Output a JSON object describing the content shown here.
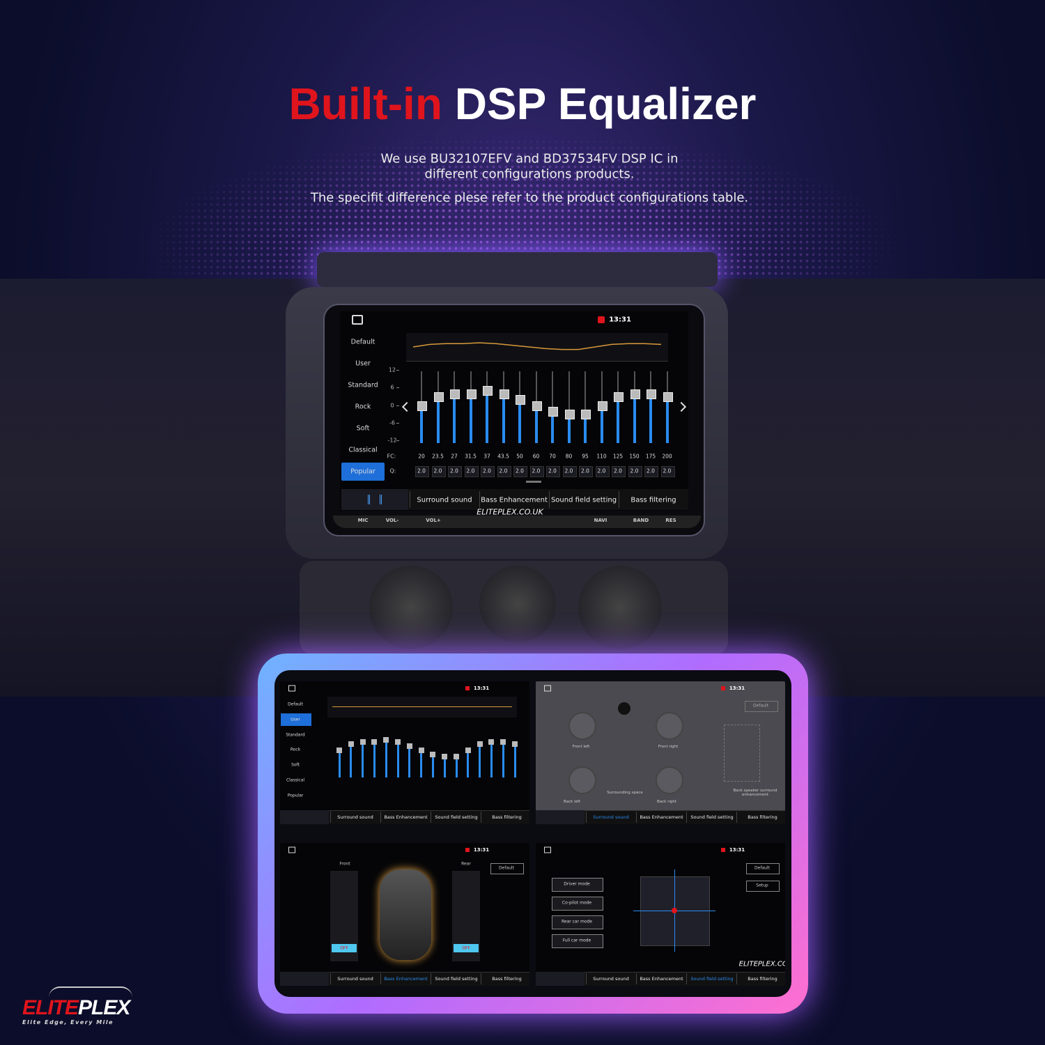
{
  "header": {
    "title_highlight": "Built-in",
    "title_rest": "DSP Equalizer",
    "lines": [
      "We use BU32107EFV and BD37534FV DSP IC in",
      "different configurations products.",
      "The specifit difference plese refer to the product configurations table."
    ]
  },
  "main_screen": {
    "time": "13:31",
    "presets": [
      "Default",
      "User",
      "Standard",
      "Rock",
      "Soft",
      "Classical",
      "Popular"
    ],
    "selected_preset": 6,
    "eq": {
      "ylim": [
        -12,
        12
      ],
      "yticks": [
        12,
        6,
        0,
        -6,
        -12
      ],
      "fc_label": "FC:",
      "q_label": "Q:",
      "fc": [
        20,
        23.5,
        27,
        31.5,
        37,
        43.5,
        50,
        60,
        70,
        80,
        95,
        110,
        125,
        150,
        175,
        200
      ],
      "q": [
        "2.0",
        "2.0",
        "2.0",
        "2.0",
        "2.0",
        "2.0",
        "2.0",
        "2.0",
        "2.0",
        "2.0",
        "2.0",
        "2.0",
        "2.0",
        "2.0",
        "2.0",
        "2.0"
      ],
      "levels": [
        0,
        3,
        4,
        4,
        5,
        4,
        2,
        0,
        -2,
        -3,
        -3,
        0,
        3,
        4,
        4,
        3
      ]
    },
    "tabs": [
      "Surround sound",
      "Bass Enhancement",
      "Sound field setting",
      "Bass filtering"
    ],
    "buttons": [
      "MIC",
      "VOL-",
      "VOL+",
      "NAVI",
      "BAND",
      "RES"
    ],
    "watermark": "ELITEPLEX.CO.UK"
  },
  "panels": [
    {
      "time": "13:31",
      "tabs": [
        "Surround sound",
        "Bass Enhancement",
        "Sound field setting",
        "Bass filtering"
      ],
      "presets": [
        "Default",
        "User",
        "Standard",
        "Rock",
        "Soft",
        "Classical",
        "Popular"
      ],
      "selected_preset": 1
    },
    {
      "time": "13:31",
      "tabs": [
        "Surround sound",
        "Bass Enhancement",
        "Sound field setting",
        "Bass filtering"
      ],
      "active_tab": 0,
      "default": "Default",
      "labels": [
        "Front left",
        "Front right",
        "Back left",
        "Back right",
        "Surrounding space",
        "Back speaker surround enhancement"
      ]
    },
    {
      "time": "13:31",
      "tabs": [
        "Surround sound",
        "Bass Enhancement",
        "Sound field setting",
        "Bass filtering"
      ],
      "active_tab": 1,
      "default": "Default",
      "front": "Front",
      "rear": "Rear",
      "off": "OFF"
    },
    {
      "time": "13:31",
      "tabs": [
        "Surround sound",
        "Bass Enhancement",
        "Sound field setting",
        "Bass filtering"
      ],
      "active_tab": 2,
      "default": "Default",
      "setup": "Setup",
      "modes": [
        "Driver mode",
        "Co-pilot mode",
        "Rear car mode",
        "Full car mode"
      ],
      "watermark": "ELITEPLEX.CO.UK"
    }
  ],
  "logo": {
    "name_1": "ELITE",
    "name_2": "PLEX",
    "tagline": "Elite Edge, Every Mile"
  }
}
